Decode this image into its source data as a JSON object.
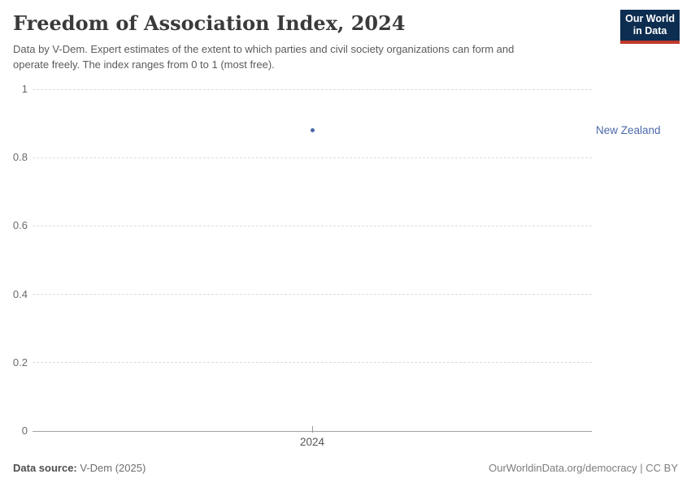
{
  "header": {
    "title": "Freedom of Association Index, 2024",
    "subtitle_lines": [
      "Data by V-Dem. Expert estimates of the extent to which parties and civil society organizations can form and",
      "operate freely. The index ranges from 0 to 1 (most free)."
    ],
    "logo": {
      "line1": "Our World",
      "line2": "in Data",
      "bg_color": "#0d2d51",
      "accent_color": "#c0392b"
    }
  },
  "chart_data": {
    "type": "scatter",
    "title": "Freedom of Association Index, 2024",
    "x": [
      2024
    ],
    "xtick_labels": [
      "2024"
    ],
    "series": [
      {
        "name": "New Zealand",
        "values": [
          0.88
        ],
        "color": "#4a68a8"
      }
    ],
    "xlabel": "",
    "ylabel": "",
    "ylim": [
      0,
      1
    ],
    "yticks": [
      0,
      0.2,
      0.4,
      0.6,
      0.8,
      1
    ],
    "ytick_labels": [
      "0",
      "0.2",
      "0.4",
      "0.6",
      "0.8",
      "1"
    ],
    "grid": "horizontal-dashed",
    "legend_position": "right-of-point"
  },
  "footer": {
    "source_label": "Data source:",
    "source_value": " V-Dem (2025)",
    "credit": "OurWorldinData.org/democracy | CC BY"
  },
  "colors": {
    "title": "#3a3a3a",
    "subtitle": "#5b5b5b",
    "gridline": "#dcdcdc",
    "axis_line": "#a3a3a3",
    "tick_label": "#6b6b6b",
    "series_blue": "#4a68a8"
  }
}
